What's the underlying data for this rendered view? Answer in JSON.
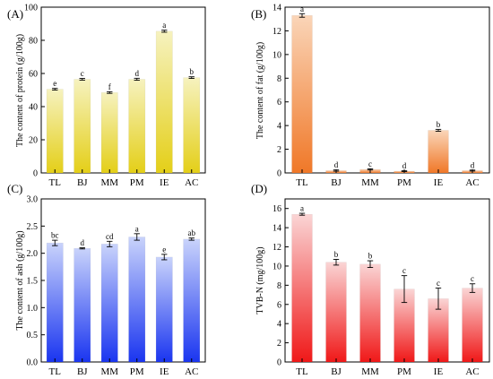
{
  "categories": [
    "TL",
    "BJ",
    "MM",
    "PM",
    "IE",
    "AC"
  ],
  "chart_data": [
    {
      "id": "A",
      "panel_label": "(A)",
      "type": "bar",
      "ylabel": "The content of protein (g/100g)",
      "ylim": [
        0,
        100
      ],
      "yticks": [
        0,
        20,
        40,
        60,
        80,
        100
      ],
      "tick_format": "0",
      "values": [
        50.5,
        56.5,
        48.5,
        56.5,
        85.5,
        57.5
      ],
      "errors": [
        0.5,
        0.5,
        0.5,
        0.6,
        0.6,
        0.5
      ],
      "letters": [
        "e",
        "c",
        "f",
        "d",
        "a",
        "b"
      ],
      "gradient": [
        "#f6f2bf",
        "#e4cf18"
      ]
    },
    {
      "id": "B",
      "panel_label": "(B)",
      "type": "bar",
      "ylabel": "The content of fat (g/100g)",
      "ylim": [
        0,
        14
      ],
      "yticks": [
        0,
        2,
        4,
        6,
        8,
        10,
        12,
        14
      ],
      "tick_format": "0",
      "values": [
        13.3,
        0.2,
        0.3,
        0.15,
        3.6,
        0.2
      ],
      "errors": [
        0.15,
        0.05,
        0.05,
        0.03,
        0.08,
        0.04
      ],
      "letters": [
        "a",
        "d",
        "c",
        "d",
        "b",
        "d"
      ],
      "gradient": [
        "#fad5b8",
        "#f07828"
      ]
    },
    {
      "id": "C",
      "panel_label": "(C)",
      "type": "bar",
      "ylabel": "The content of ash (g/100g)",
      "ylim": [
        0,
        3.0
      ],
      "yticks": [
        0.0,
        0.5,
        1.0,
        1.5,
        2.0,
        2.5,
        3.0
      ],
      "tick_format": "0.0",
      "values": [
        2.19,
        2.09,
        2.17,
        2.3,
        1.93,
        2.26
      ],
      "errors": [
        0.05,
        0.01,
        0.05,
        0.06,
        0.05,
        0.02
      ],
      "letters": [
        "bc",
        "d",
        "cd",
        "a",
        "e",
        "ab"
      ],
      "gradient": [
        "#c9d3fb",
        "#1a35f0"
      ]
    },
    {
      "id": "D",
      "panel_label": "(D)",
      "type": "bar",
      "ylabel": "TVB-N (mg/100g)",
      "ylim": [
        0,
        17
      ],
      "yticks": [
        0,
        2,
        4,
        6,
        8,
        10,
        12,
        14,
        16
      ],
      "tick_format": "0",
      "values": [
        15.4,
        10.4,
        10.2,
        7.6,
        6.6,
        7.7
      ],
      "errors": [
        0.1,
        0.3,
        0.35,
        1.4,
        1.1,
        0.45
      ],
      "letters": [
        "a",
        "b",
        "b",
        "c",
        "c",
        "c"
      ],
      "gradient": [
        "#fad5d5",
        "#f01818"
      ]
    }
  ]
}
